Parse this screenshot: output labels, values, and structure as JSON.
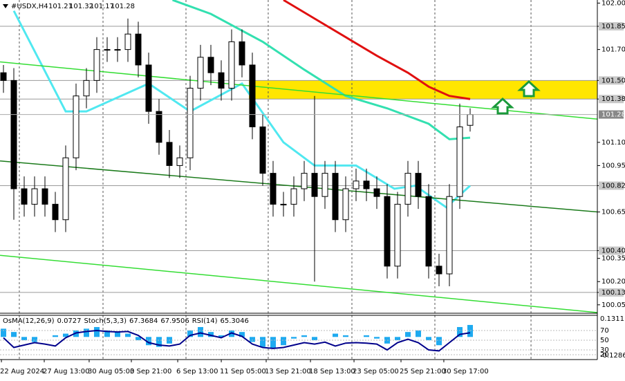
{
  "chart_data": {
    "type": "candlestick",
    "title": "#USDX,H4",
    "xlim": [
      0,
      45
    ],
    "ylim": [
      100.0,
      102.02
    ],
    "yticks": [
      {
        "value": 102,
        "label": "102.00"
      },
      101.85,
      {
        "value": 101.7,
        "label": "101.70"
      },
      {
        "value": 101.5,
        "label": "101.50"
      },
      101.38,
      {
        "value": 101.1,
        "label": "101.10"
      },
      100.95,
      100.82,
      100.65,
      {
        "value": 100.4,
        "label": "100.40"
      },
      100.35,
      {
        "value": 100.2,
        "label": "100.20"
      },
      100.13,
      100.05
    ],
    "xticks": [
      {
        "value": -0.33,
        "label": "22 Aug 2024"
      },
      {
        "value": 3.8,
        "label": "27 Aug 13:00"
      },
      {
        "value": 8.13,
        "label": "30 Aug 05:00"
      },
      {
        "value": 12.2,
        "label": "3 Sep 21:00"
      },
      {
        "value": 16.67,
        "label": "6 Sep 13:00"
      },
      {
        "value": 20.87,
        "label": "11 Sep 05:00"
      },
      {
        "value": 25.2,
        "label": "13 Sep 21:00"
      },
      {
        "value": 29.47,
        "label": "18 Sep 13:00"
      },
      {
        "value": 33.67,
        "label": "23 Sep 05:00"
      },
      {
        "value": 38.2,
        "label": "25 Sep 21:00"
      },
      {
        "value": 42.33,
        "label": "30 Sep 17:00"
      }
    ],
    "grid_x": [
      1.53,
      9.6,
      17.6,
      25.53,
      33.6,
      41.6,
      50.87
    ],
    "levels": [
      101.85,
      101.5,
      101.38,
      100.82,
      100.4,
      100.13
    ],
    "zone": {
      "x": 23.67,
      "y": [
        101.38,
        101.5
      ],
      "color": "#ffe600"
    },
    "open": [
      101.55,
      101.5,
      100.8,
      100.7,
      100.8,
      100.7,
      100.6,
      101.0,
      101.4,
      101.5,
      101.7,
      101.7,
      101.7,
      101.8,
      101.6,
      101.3,
      101.1,
      100.95,
      101.0,
      101.45,
      101.65,
      101.55,
      101.45,
      101.75,
      101.6,
      101.2,
      100.9,
      100.7,
      100.7,
      100.8,
      100.9,
      100.75,
      100.9,
      100.6,
      100.8,
      100.85,
      100.8,
      100.75,
      100.3,
      100.7,
      100.9,
      100.75,
      100.3,
      100.25,
      100.75,
      101.21
    ],
    "high": [
      101.6,
      101.58,
      100.88,
      100.88,
      100.88,
      100.78,
      101.08,
      101.48,
      101.58,
      101.78,
      101.78,
      101.78,
      101.9,
      101.88,
      101.68,
      101.38,
      101.18,
      101.08,
      101.53,
      101.73,
      101.73,
      101.63,
      101.83,
      101.83,
      101.68,
      101.28,
      100.98,
      100.78,
      100.88,
      100.98,
      101.4,
      100.98,
      100.98,
      100.88,
      100.93,
      100.93,
      100.88,
      100.83,
      100.78,
      100.98,
      100.98,
      100.83,
      100.38,
      100.83,
      101.35,
      101.32
    ],
    "low": [
      101.42,
      100.6,
      100.62,
      100.62,
      100.62,
      100.52,
      100.52,
      100.92,
      101.32,
      101.42,
      101.62,
      101.62,
      101.62,
      101.52,
      101.22,
      101.02,
      100.87,
      100.87,
      100.92,
      101.37,
      101.47,
      101.37,
      101.37,
      101.52,
      101.12,
      100.82,
      100.62,
      100.62,
      100.62,
      100.72,
      100.2,
      100.67,
      100.52,
      100.52,
      100.72,
      100.72,
      100.67,
      100.22,
      100.22,
      100.62,
      100.67,
      100.22,
      100.17,
      100.17,
      100.67,
      101.17
    ],
    "close": [
      101.5,
      100.8,
      100.7,
      100.8,
      100.7,
      100.6,
      101.0,
      101.4,
      101.5,
      101.7,
      101.7,
      101.7,
      101.8,
      101.6,
      101.3,
      101.1,
      100.95,
      101.0,
      101.45,
      101.65,
      101.55,
      101.45,
      101.75,
      101.6,
      101.2,
      100.9,
      100.7,
      100.7,
      100.8,
      100.9,
      100.75,
      100.9,
      100.6,
      100.8,
      100.85,
      100.8,
      100.75,
      100.3,
      100.7,
      100.9,
      100.75,
      100.3,
      100.25,
      100.75,
      101.2,
      101.28
    ],
    "overlays": [
      {
        "color": "#e01010",
        "x": [
          27,
          30,
          33,
          36,
          39,
          41,
          43,
          45
        ],
        "values": [
          102.02,
          101.9,
          101.78,
          101.66,
          101.55,
          101.46,
          101.4,
          101.38
        ]
      },
      {
        "color": "#33e0b0",
        "x": [
          16.3,
          20,
          25,
          29,
          33,
          37,
          41,
          43,
          45
        ],
        "values": [
          102.02,
          101.93,
          101.75,
          101.57,
          101.4,
          101.32,
          101.22,
          101.12,
          101.13
        ]
      },
      {
        "color": "#50e8f0",
        "x": [
          1,
          6,
          8,
          14,
          18,
          23,
          27,
          30,
          34,
          37.7,
          39.7,
          42.7,
          45
        ],
        "values": [
          101.95,
          101.3,
          101.3,
          101.48,
          101.3,
          101.48,
          101.1,
          100.95,
          100.95,
          100.8,
          100.82,
          100.68,
          100.82
        ]
      },
      {
        "color": "#33dd33",
        "x": [
          -0.33,
          57.27
        ],
        "values": [
          101.62,
          101.25
        ]
      },
      {
        "color": "#33dd33",
        "x": [
          -0.33,
          57.27
        ],
        "values": [
          100.37,
          100.0
        ]
      },
      {
        "color": "#1a7a1a",
        "x": [
          -0.33,
          57.27
        ],
        "values": [
          100.98,
          100.65
        ]
      }
    ],
    "osc_header": [
      "OsMA(12,26,9)",
      "Stoch(5,3,3)",
      "RSI(14)"
    ],
    "stoch": [
      67.3684,
      67.9506
    ],
    "osc_ylim": [
      -0.1286,
      0.1311
    ],
    "osc_yticks": [
      0.1311,
      -0.1286
    ],
    "osma": [
      0.05,
      0.03,
      -0.02,
      -0.03,
      0.0,
      0.01,
      0.02,
      0.04,
      0.05,
      0.06,
      0.04,
      0.03,
      0.02,
      -0.02,
      -0.05,
      -0.06,
      -0.04,
      0.0,
      0.04,
      0.06,
      0.03,
      0.01,
      0.04,
      0.03,
      -0.03,
      -0.06,
      -0.07,
      -0.05,
      -0.01,
      0.01,
      -0.02,
      0.0,
      0.02,
      0.01,
      0.0,
      0.01,
      -0.01,
      -0.04,
      -0.02,
      0.03,
      0.04,
      -0.02,
      -0.05,
      0.0,
      0.06,
      0.0727
    ],
    "rsi_ylim": [
      12.9,
      101.4
    ],
    "rsi_yticks": [
      70,
      50,
      30,
      20
    ],
    "rsi": [
      55,
      35,
      40,
      45,
      42,
      38,
      55,
      65,
      68,
      70,
      68,
      67,
      68,
      60,
      45,
      40,
      38,
      42,
      60,
      65,
      60,
      55,
      65,
      58,
      42,
      35,
      33,
      35,
      40,
      45,
      42,
      46,
      38,
      44,
      45,
      44,
      42,
      30,
      45,
      52,
      45,
      30,
      28,
      45,
      62,
      65.3046
    ]
  }
}
